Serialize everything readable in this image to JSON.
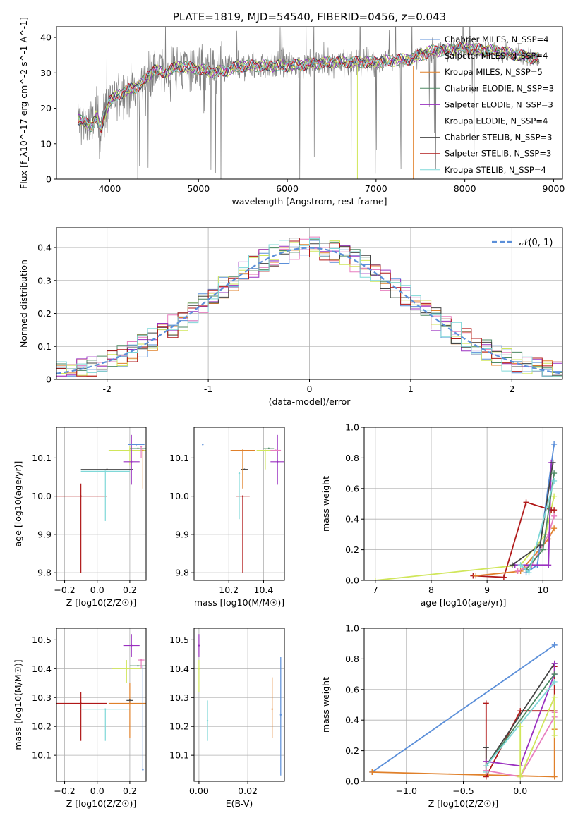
{
  "colors": {
    "Chabrier MILES": "#5b8fd9",
    "Salpeter MILES": "#e87fbf",
    "Kroupa MILES": "#e0802a",
    "Chabrier ELODIE": "#4e8a64",
    "Salpeter ELODIE": "#9a30c0",
    "Kroupa ELODIE": "#d0e65a",
    "Chabrier STELIB": "#444444",
    "Salpeter STELIB": "#b01818",
    "Kroupa STELIB": "#7fd8d8",
    "data": "#808080"
  },
  "chart_data": [
    {
      "id": "spectrum",
      "type": "line",
      "title": "PLATE=1819, MJD=54540, FIBERID=0456, z=0.043",
      "xlabel": "wavelength [Angstrom, rest frame]",
      "ylabel": "Flux [f_λ10^-17 erg cm^-2 s^-1 A^-1]",
      "xlim": [
        3400,
        9100
      ],
      "ylim": [
        0,
        43
      ],
      "xticks": [
        4000,
        5000,
        6000,
        7000,
        8000,
        9000
      ],
      "yticks": [
        0,
        10,
        20,
        30,
        40
      ],
      "grid": false,
      "legend_position": "top-right",
      "legend": [
        "Chabrier MILES, N_SSP=4",
        "Salpeter MILES, N_SSP=4",
        "Kroupa MILES, N_SSP=5",
        "Chabrier ELODIE, N_SSP=3",
        "Salpeter ELODIE, N_SSP=3",
        "Kroupa ELODIE, N_SSP=4",
        "Chabrier STELIB, N_SSP=3",
        "Salpeter STELIB, N_SSP=3",
        "Kroupa STELIB, N_SSP=4"
      ],
      "continuum": {
        "x": [
          3650,
          3700,
          3800,
          3850,
          3900,
          3950,
          4000,
          4100,
          4200,
          4300,
          4400,
          4500,
          4600,
          4800,
          5000,
          5200,
          5500,
          6000,
          6500,
          7000,
          7200,
          7400,
          7600,
          8000,
          8400,
          8800
        ],
        "y": [
          17,
          16,
          15,
          18,
          14,
          19,
          22,
          24,
          25,
          26,
          28,
          31,
          30,
          32,
          31,
          30,
          32,
          32,
          33,
          33,
          33.5,
          34,
          36,
          37,
          36,
          34
        ]
      }
    },
    {
      "id": "residuals",
      "type": "histogram",
      "xlabel": "(data-model)/error",
      "ylabel": "Normed distribution",
      "xlim": [
        -2.5,
        2.5
      ],
      "ylim": [
        0,
        0.46
      ],
      "xticks": [
        -2,
        -1,
        0,
        1,
        2
      ],
      "yticks": [
        0.0,
        0.1,
        0.2,
        0.3,
        0.4
      ],
      "grid": true,
      "legend_position": "top-right",
      "legend": [
        "𝒩(0, 1)"
      ],
      "normal": {
        "mean": 0,
        "sigma": 1
      }
    },
    {
      "id": "age-vs-Z",
      "type": "scatter",
      "xlabel": "Z [log10(Z/Z☉)]",
      "ylabel": "age  [log10(age/yr)]",
      "xlim": [
        -0.25,
        0.3
      ],
      "ylim": [
        9.78,
        10.18
      ],
      "xticks": [
        -0.2,
        0.0,
        0.2
      ],
      "xtick_labels": [
        "−0.2",
        "0.0",
        "0.2"
      ],
      "yticks": [
        9.8,
        9.9,
        10.0,
        10.1
      ],
      "ytick_labels": [
        "9.8",
        "9.9",
        "10.0",
        "10.1"
      ],
      "grid": true,
      "points": [
        {
          "model": "Salpeter STELIB",
          "x": -0.1,
          "xerr": 0.16,
          "y": 10.0,
          "yerr_lo": 0.2,
          "yerr_hi": 0.033
        },
        {
          "model": "Chabrier STELIB",
          "x": 0.06,
          "xerr": 0.16,
          "y": 10.07,
          "yerr_lo": 0.0,
          "yerr_hi": 0.0
        },
        {
          "model": "Kroupa STELIB",
          "x": 0.05,
          "xerr": 0.15,
          "y": 10.065,
          "yerr_lo": 0.13,
          "yerr_hi": 0.0
        },
        {
          "model": "Kroupa ELODIE",
          "x": 0.2,
          "xerr": 0.13,
          "y": 10.12,
          "yerr_lo": 0.04,
          "yerr_hi": 0.01
        },
        {
          "model": "Salpeter ELODIE",
          "x": 0.21,
          "xerr": 0.05,
          "y": 10.09,
          "yerr_lo": 0.06,
          "yerr_hi": 0.07
        },
        {
          "model": "Chabrier ELODIE",
          "x": 0.25,
          "xerr": 0.05,
          "y": 10.125,
          "yerr_lo": 0.0,
          "yerr_hi": 0.0
        },
        {
          "model": "Chabrier MILES",
          "x": 0.24,
          "xerr": 0.05,
          "y": 10.135,
          "yerr_lo": 0.0,
          "yerr_hi": 0.0
        },
        {
          "model": "Salpeter MILES",
          "x": 0.27,
          "xerr": 0.0,
          "y": 10.13,
          "yerr_lo": 0.03,
          "yerr_hi": 0.0
        },
        {
          "model": "Kroupa MILES",
          "x": 0.28,
          "xerr": 0.0,
          "y": 10.12,
          "yerr_lo": 0.1,
          "yerr_hi": 0.0
        }
      ]
    },
    {
      "id": "age-vs-mass",
      "type": "scatter",
      "xlabel": "mass [log10(M/M☉)]",
      "ylabel": "",
      "xlim": [
        10.0,
        10.52
      ],
      "ylim": [
        9.78,
        10.18
      ],
      "xticks": [
        10.2,
        10.4
      ],
      "xtick_labels": [
        "10.2",
        "10.4"
      ],
      "yticks": [
        9.8,
        9.9,
        10.0,
        10.1
      ],
      "ytick_labels": [
        "9.8",
        "9.9",
        "10.0",
        "10.1"
      ],
      "grid": true,
      "points": [
        {
          "model": "Salpeter STELIB",
          "x": 10.28,
          "xerr": 0.04,
          "y": 10.0,
          "yerr_lo": 0.2,
          "yerr_hi": 0.0
        },
        {
          "model": "Chabrier STELIB",
          "x": 10.29,
          "xerr": 0.02,
          "y": 10.07,
          "yerr_lo": 0.0,
          "yerr_hi": 0.0
        },
        {
          "model": "Kroupa STELIB",
          "x": 10.26,
          "xerr": 0.0,
          "y": 10.06,
          "yerr_lo": 0.12,
          "yerr_hi": 0.0
        },
        {
          "model": "Kroupa MILES",
          "x": 10.28,
          "xerr": 0.07,
          "y": 10.12,
          "yerr_lo": 0.1,
          "yerr_hi": 0.0
        },
        {
          "model": "Chabrier MILES",
          "x": 10.05,
          "xerr": 0.0,
          "y": 10.135,
          "yerr_lo": 0.0,
          "yerr_hi": 0.0
        },
        {
          "model": "Salpeter ELODIE",
          "x": 10.48,
          "xerr": 0.04,
          "y": 10.09,
          "yerr_lo": 0.06,
          "yerr_hi": 0.07
        },
        {
          "model": "Kroupa ELODIE",
          "x": 10.41,
          "xerr": 0.05,
          "y": 10.12,
          "yerr_lo": 0.05,
          "yerr_hi": 0.0
        },
        {
          "model": "Chabrier ELODIE",
          "x": 10.43,
          "xerr": 0.03,
          "y": 10.125,
          "yerr_lo": 0.0,
          "yerr_hi": 0.0
        },
        {
          "model": "Salpeter MILES",
          "x": 10.47,
          "xerr": 0.03,
          "y": 10.12,
          "yerr_lo": 0.0,
          "yerr_hi": 0.0
        }
      ]
    },
    {
      "id": "massweight-vs-age",
      "type": "line",
      "xlabel": "age  [log10(age/yr)]",
      "ylabel": "mass weight",
      "xlim": [
        6.8,
        10.35
      ],
      "ylim": [
        0,
        1.0
      ],
      "xticks": [
        7,
        8,
        9,
        10
      ],
      "xtick_labels": [
        "7",
        "8",
        "9",
        "10"
      ],
      "yticks": [
        0.0,
        0.2,
        0.4,
        0.6,
        0.8,
        1.0
      ],
      "ytick_labels": [
        "0.0",
        "0.2",
        "0.4",
        "0.6",
        "0.8",
        "1.0"
      ],
      "grid": true,
      "series": [
        {
          "model": "Kroupa ELODIE",
          "x": [
            7.0,
            9.6,
            10.05,
            10.2
          ],
          "y": [
            0.0,
            0.1,
            0.3,
            0.55
          ]
        },
        {
          "model": "Salpeter STELIB",
          "x": [
            8.75,
            9.3,
            9.7,
            10.15,
            10.2
          ],
          "y": [
            0.03,
            0.02,
            0.51,
            0.46,
            0.46
          ]
        },
        {
          "model": "Kroupa MILES",
          "x": [
            8.8,
            9.6,
            10.1,
            10.2
          ],
          "y": [
            0.03,
            0.06,
            0.27,
            0.34
          ]
        },
        {
          "model": "Salpeter MILES",
          "x": [
            9.55,
            9.8,
            10.1,
            10.2
          ],
          "y": [
            0.06,
            0.1,
            0.3,
            0.42
          ]
        },
        {
          "model": "Chabrier MILES",
          "x": [
            9.7,
            9.9,
            10.2
          ],
          "y": [
            0.05,
            0.1,
            0.89
          ]
        },
        {
          "model": "Salpeter ELODIE",
          "x": [
            9.5,
            10.1,
            10.15
          ],
          "y": [
            0.1,
            0.1,
            0.77
          ]
        },
        {
          "model": "Chabrier STELIB",
          "x": [
            9.45,
            9.95,
            10.18
          ],
          "y": [
            0.1,
            0.23,
            0.77
          ]
        },
        {
          "model": "Chabrier ELODIE",
          "x": [
            9.7,
            10.0,
            10.2
          ],
          "y": [
            0.07,
            0.2,
            0.7
          ]
        },
        {
          "model": "Kroupa STELIB",
          "x": [
            9.6,
            9.75,
            10.2
          ],
          "y": [
            0.1,
            0.05,
            0.65
          ]
        }
      ]
    },
    {
      "id": "mass-vs-Z",
      "type": "scatter",
      "xlabel": "Z [log10(Z/Z☉)]",
      "ylabel": "mass [log10(M/M☉)]",
      "xlim": [
        -0.25,
        0.3
      ],
      "ylim": [
        10.01,
        10.54
      ],
      "xticks": [
        -0.2,
        0.0,
        0.2
      ],
      "xtick_labels": [
        "−0.2",
        "0.0",
        "0.2"
      ],
      "yticks": [
        10.1,
        10.2,
        10.3,
        10.4,
        10.5
      ],
      "ytick_labels": [
        "10.1",
        "10.2",
        "10.3",
        "10.4",
        "10.5"
      ],
      "grid": true,
      "points": [
        {
          "model": "Salpeter STELIB",
          "x": -0.1,
          "xerr": 0.16,
          "y": 10.28,
          "yerr_lo": 0.13,
          "yerr_hi": 0.04
        },
        {
          "model": "Kroupa STELIB",
          "x": 0.05,
          "xerr": 0.15,
          "y": 10.26,
          "yerr_lo": 0.11,
          "yerr_hi": 0.0
        },
        {
          "model": "Kroupa MILES",
          "x": 0.2,
          "xerr": 0.13,
          "y": 10.28,
          "yerr_lo": 0.12,
          "yerr_hi": 0.07
        },
        {
          "model": "Chabrier STELIB",
          "x": 0.2,
          "xerr": 0.02,
          "y": 10.29,
          "yerr_lo": 0.0,
          "yerr_hi": 0.0
        },
        {
          "model": "Kroupa ELODIE",
          "x": 0.18,
          "xerr": 0.09,
          "y": 10.4,
          "yerr_lo": 0.05,
          "yerr_hi": 0.03
        },
        {
          "model": "Salpeter ELODIE",
          "x": 0.21,
          "xerr": 0.05,
          "y": 10.48,
          "yerr_lo": 0.04,
          "yerr_hi": 0.04
        },
        {
          "model": "Chabrier ELODIE",
          "x": 0.25,
          "xerr": 0.05,
          "y": 10.41,
          "yerr_lo": 0.0,
          "yerr_hi": 0.0
        },
        {
          "model": "Salpeter MILES",
          "x": 0.27,
          "xerr": 0.02,
          "y": 10.43,
          "yerr_lo": 0.03,
          "yerr_hi": 0.0
        },
        {
          "model": "Chabrier MILES",
          "x": 0.28,
          "xerr": 0.0,
          "y": 10.05,
          "yerr_lo": 0.0,
          "yerr_hi": 0.36
        }
      ]
    },
    {
      "id": "mass-vs-EBV",
      "type": "scatter",
      "xlabel": "E(B-V)",
      "ylabel": "",
      "xlim": [
        -0.002,
        0.035
      ],
      "ylim": [
        10.01,
        10.54
      ],
      "xticks": [
        0.0,
        0.02
      ],
      "xtick_labels": [
        "0.00",
        "0.02"
      ],
      "yticks": [
        10.1,
        10.2,
        10.3,
        10.4,
        10.5
      ],
      "ytick_labels": [
        "10.1",
        "10.2",
        "10.3",
        "10.4",
        "10.5"
      ],
      "grid": true,
      "points": [
        {
          "model": "Salpeter ELODIE",
          "x": 0.0,
          "xerr": 0.0,
          "y": 10.48,
          "yerr_lo": 0.04,
          "yerr_hi": 0.04
        },
        {
          "model": "Kroupa ELODIE",
          "x": 0.0,
          "xerr": 0.0,
          "y": 10.4,
          "yerr_lo": 0.08,
          "yerr_hi": 0.03
        },
        {
          "model": "Kroupa STELIB",
          "x": 0.0035,
          "xerr": 0.0,
          "y": 10.22,
          "yerr_lo": 0.07,
          "yerr_hi": 0.07
        },
        {
          "model": "Kroupa MILES",
          "x": 0.03,
          "xerr": 0.0,
          "y": 10.26,
          "yerr_lo": 0.1,
          "yerr_hi": 0.11
        },
        {
          "model": "Chabrier MILES",
          "x": 0.0335,
          "xerr": 0.0,
          "y": 10.24,
          "yerr_lo": 0.21,
          "yerr_hi": 0.2
        }
      ]
    },
    {
      "id": "massweight-vs-Z",
      "type": "line",
      "xlabel": "Z [log10(Z/Z☉)]",
      "ylabel": "mass weight",
      "xlim": [
        -1.37,
        0.37
      ],
      "ylim": [
        0,
        1.0
      ],
      "xticks": [
        -1.0,
        -0.5,
        0.0
      ],
      "xtick_labels": [
        "−1.0",
        "−0.5",
        "0.0"
      ],
      "yticks": [
        0.0,
        0.2,
        0.4,
        0.6,
        0.8,
        1.0
      ],
      "ytick_labels": [
        "0.0",
        "0.2",
        "0.4",
        "0.6",
        "0.8",
        "1.0"
      ],
      "grid": true,
      "series": [
        {
          "model": "Chabrier MILES",
          "x": [
            -1.3,
            0.3
          ],
          "y": [
            0.06,
            0.89
          ]
        },
        {
          "model": "Kroupa MILES",
          "x": [
            -1.3,
            0.3,
            0.3
          ],
          "y": [
            0.06,
            0.03,
            0.34
          ]
        },
        {
          "model": "Salpeter STELIB",
          "x": [
            -0.3,
            -0.3,
            0.0,
            0.3,
            0.3
          ],
          "y": [
            0.51,
            0.03,
            0.46,
            0.46,
            0.75
          ]
        },
        {
          "model": "Chabrier STELIB",
          "x": [
            -0.3,
            -0.3,
            0.3
          ],
          "y": [
            0.22,
            0.1,
            0.77
          ]
        },
        {
          "model": "Salpeter ELODIE",
          "x": [
            -0.3,
            0.0,
            0.3,
            0.3
          ],
          "y": [
            0.13,
            0.1,
            0.7,
            0.77
          ]
        },
        {
          "model": "Chabrier ELODIE",
          "x": [
            -0.3,
            0.3
          ],
          "y": [
            0.1,
            0.7
          ]
        },
        {
          "model": "Kroupa STELIB",
          "x": [
            -0.3,
            -0.3,
            0.3
          ],
          "y": [
            0.06,
            0.1,
            0.65
          ]
        },
        {
          "model": "Salpeter MILES",
          "x": [
            -0.3,
            0.0,
            0.3,
            0.3
          ],
          "y": [
            0.07,
            0.03,
            0.42,
            0.45
          ]
        },
        {
          "model": "Kroupa ELODIE",
          "x": [
            0.0,
            0.0,
            0.3,
            0.3
          ],
          "y": [
            0.36,
            0.03,
            0.55,
            0.3
          ]
        }
      ]
    }
  ]
}
